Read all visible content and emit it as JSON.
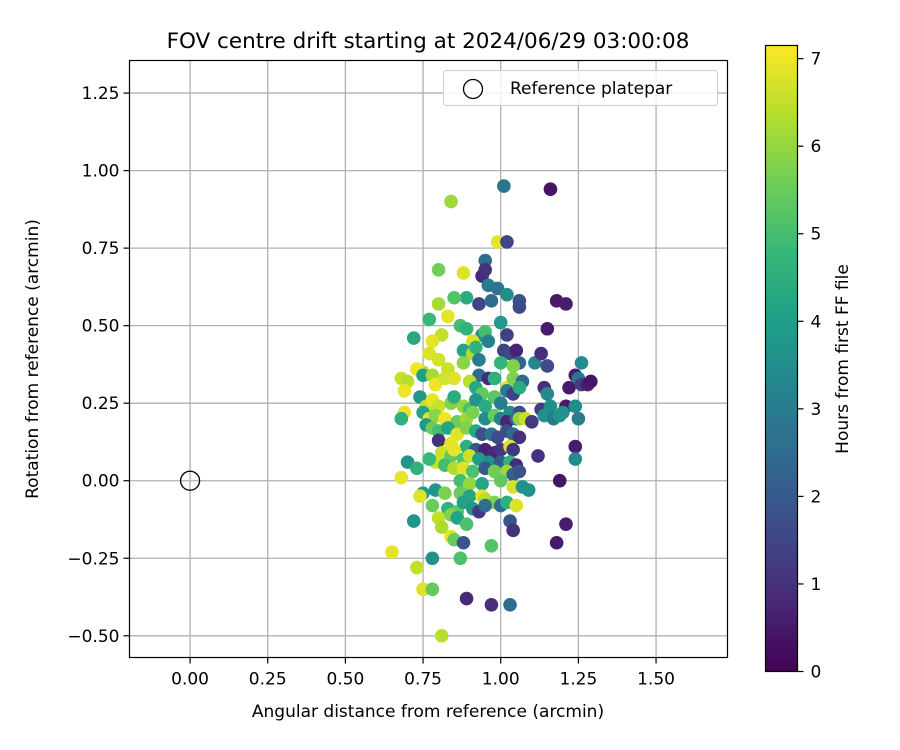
{
  "chart_data": {
    "type": "scatter",
    "title": "FOV centre drift starting at 2024/06/29 03:00:08",
    "xlabel": "Angular distance from reference (arcmin)",
    "ylabel": "Rotation from reference (arcmin)",
    "colorbar_label": "Hours from first FF file",
    "xlim": [
      -0.195,
      1.73
    ],
    "ylim": [
      -0.57,
      1.355
    ],
    "x_ticks": [
      0.0,
      0.25,
      0.5,
      0.75,
      1.0,
      1.25,
      1.5
    ],
    "x_tick_labels": [
      "0.00",
      "0.25",
      "0.50",
      "0.75",
      "1.00",
      "1.25",
      "1.50"
    ],
    "y_ticks": [
      -0.5,
      -0.25,
      0.0,
      0.25,
      0.5,
      0.75,
      1.0,
      1.25
    ],
    "y_tick_labels": [
      "−0.50",
      "−0.25",
      "0.00",
      "0.25",
      "0.50",
      "0.75",
      "1.00",
      "1.25"
    ],
    "colorbar_range": [
      0,
      7.15
    ],
    "colorbar_ticks": [
      0,
      1,
      2,
      3,
      4,
      5,
      6,
      7
    ],
    "colormap": "viridis",
    "grid": true,
    "legend": {
      "position": "upper right",
      "entries": [
        {
          "label": "Reference platepar",
          "marker": "open-circle",
          "x": 0.0,
          "y": 0.0
        }
      ]
    },
    "points": [
      [
        0.84,
        0.9,
        6.1
      ],
      [
        1.01,
        0.95,
        2.8
      ],
      [
        1.16,
        0.94,
        0.4
      ],
      [
        0.99,
        0.77,
        6.9
      ],
      [
        1.02,
        0.77,
        1.5
      ],
      [
        0.95,
        0.71,
        2.5
      ],
      [
        0.8,
        0.68,
        5.6
      ],
      [
        0.88,
        0.67,
        6.8
      ],
      [
        0.94,
        0.66,
        0.8
      ],
      [
        0.95,
        0.68,
        1.0
      ],
      [
        0.96,
        0.63,
        3.0
      ],
      [
        0.99,
        0.62,
        2.8
      ],
      [
        1.02,
        0.6,
        3.5
      ],
      [
        0.89,
        0.59,
        4.4
      ],
      [
        0.85,
        0.59,
        5.2
      ],
      [
        0.93,
        0.57,
        1.5
      ],
      [
        0.97,
        0.58,
        2.5
      ],
      [
        1.06,
        0.58,
        1.8
      ],
      [
        1.06,
        0.56,
        1.6
      ],
      [
        1.18,
        0.58,
        0.5
      ],
      [
        1.21,
        0.57,
        0.6
      ],
      [
        0.8,
        0.57,
        6.2
      ],
      [
        0.77,
        0.52,
        4.8
      ],
      [
        0.83,
        0.53,
        6.9
      ],
      [
        0.87,
        0.5,
        5.0
      ],
      [
        0.89,
        0.49,
        4.6
      ],
      [
        0.94,
        0.47,
        3.6
      ],
      [
        0.95,
        0.48,
        5.0
      ],
      [
        0.96,
        0.45,
        3.2
      ],
      [
        1.02,
        0.47,
        1.4
      ],
      [
        1.15,
        0.49,
        0.5
      ],
      [
        1.0,
        0.51,
        3.8
      ],
      [
        0.81,
        0.47,
        6.5
      ],
      [
        0.78,
        0.45,
        6.9
      ],
      [
        0.91,
        0.45,
        6.8
      ],
      [
        0.72,
        0.46,
        4.3
      ],
      [
        0.88,
        0.42,
        4.2
      ],
      [
        0.91,
        0.41,
        6.3
      ],
      [
        0.92,
        0.43,
        4.6
      ],
      [
        0.93,
        0.39,
        3.0
      ],
      [
        1.01,
        0.42,
        1.4
      ],
      [
        1.03,
        0.41,
        1.6
      ],
      [
        1.05,
        0.42,
        0.7
      ],
      [
        1.06,
        0.38,
        2.3
      ],
      [
        1.04,
        0.37,
        5.8
      ],
      [
        1.0,
        0.38,
        4.7
      ],
      [
        1.11,
        0.38,
        3.3
      ],
      [
        1.13,
        0.41,
        0.9
      ],
      [
        1.15,
        0.37,
        1.6
      ],
      [
        1.26,
        0.38,
        3.4
      ],
      [
        0.77,
        0.41,
        6.8
      ],
      [
        0.75,
        0.35,
        6.5
      ],
      [
        0.73,
        0.36,
        7.0
      ],
      [
        0.8,
        0.39,
        6.7
      ],
      [
        0.83,
        0.36,
        6.6
      ],
      [
        0.88,
        0.38,
        5.9
      ],
      [
        0.93,
        0.34,
        2.5
      ],
      [
        0.96,
        0.33,
        0.8
      ],
      [
        0.98,
        0.33,
        4.5
      ],
      [
        1.02,
        0.3,
        6.9
      ],
      [
        1.04,
        0.33,
        5.7
      ],
      [
        1.07,
        0.32,
        2.5
      ],
      [
        1.14,
        0.3,
        0.9
      ],
      [
        1.22,
        0.3,
        0.5
      ],
      [
        1.24,
        0.34,
        0.5
      ],
      [
        1.25,
        0.33,
        2.8
      ],
      [
        1.26,
        0.31,
        1.3
      ],
      [
        1.28,
        0.31,
        0.6
      ],
      [
        1.29,
        0.32,
        0.4
      ],
      [
        0.68,
        0.33,
        6.6
      ],
      [
        0.7,
        0.32,
        6.4
      ],
      [
        0.69,
        0.29,
        7.0
      ],
      [
        0.75,
        0.34,
        4.0
      ],
      [
        0.78,
        0.34,
        6.2
      ],
      [
        0.79,
        0.31,
        7.0
      ],
      [
        0.82,
        0.33,
        6.7
      ],
      [
        0.85,
        0.33,
        6.8
      ],
      [
        0.9,
        0.32,
        6.4
      ],
      [
        0.92,
        0.3,
        4.3
      ],
      [
        0.94,
        0.28,
        5.4
      ],
      [
        0.98,
        0.27,
        5.3
      ],
      [
        1.02,
        0.29,
        3.0
      ],
      [
        1.04,
        0.28,
        1.4
      ],
      [
        1.06,
        0.3,
        4.4
      ],
      [
        1.15,
        0.28,
        3.4
      ],
      [
        1.21,
        0.24,
        0.5
      ],
      [
        0.74,
        0.27,
        3.8
      ],
      [
        0.76,
        0.24,
        6.5
      ],
      [
        0.78,
        0.26,
        6.9
      ],
      [
        0.8,
        0.24,
        6.6
      ],
      [
        0.84,
        0.25,
        5.8
      ],
      [
        0.85,
        0.27,
        4.4
      ],
      [
        0.88,
        0.24,
        6.0
      ],
      [
        0.9,
        0.23,
        5.0
      ],
      [
        0.92,
        0.26,
        3.7
      ],
      [
        0.95,
        0.24,
        4.4
      ],
      [
        1.0,
        0.25,
        3.0
      ],
      [
        1.03,
        0.22,
        3.5
      ],
      [
        1.06,
        0.22,
        1.6
      ],
      [
        1.13,
        0.23,
        1.3
      ],
      [
        1.16,
        0.24,
        3.5
      ],
      [
        1.2,
        0.22,
        3.6
      ],
      [
        1.24,
        0.24,
        3.5
      ],
      [
        0.69,
        0.22,
        6.9
      ],
      [
        0.68,
        0.2,
        4.5
      ],
      [
        0.75,
        0.22,
        4.1
      ],
      [
        0.77,
        0.2,
        6.8
      ],
      [
        0.79,
        0.21,
        5.9
      ],
      [
        0.82,
        0.2,
        7.0
      ],
      [
        0.86,
        0.19,
        5.5
      ],
      [
        0.89,
        0.2,
        6.1
      ],
      [
        0.91,
        0.22,
        5.7
      ],
      [
        0.95,
        0.2,
        3.5
      ],
      [
        0.98,
        0.21,
        5.5
      ],
      [
        1.0,
        0.2,
        3.2
      ],
      [
        1.02,
        0.19,
        0.7
      ],
      [
        1.05,
        0.2,
        2.4
      ],
      [
        1.06,
        0.2,
        6.0
      ],
      [
        1.08,
        0.2,
        6.6
      ],
      [
        1.1,
        0.19,
        1.2
      ],
      [
        1.14,
        0.21,
        3.6
      ],
      [
        1.17,
        0.2,
        3.0
      ],
      [
        1.19,
        0.21,
        3.7
      ],
      [
        1.25,
        0.2,
        3.0
      ],
      [
        0.76,
        0.18,
        3.8
      ],
      [
        0.78,
        0.17,
        5.5
      ],
      [
        0.8,
        0.16,
        5.0
      ],
      [
        0.83,
        0.17,
        4.2
      ],
      [
        0.86,
        0.15,
        6.8
      ],
      [
        0.89,
        0.17,
        5.8
      ],
      [
        0.92,
        0.16,
        4.3
      ],
      [
        0.94,
        0.15,
        1.8
      ],
      [
        0.97,
        0.15,
        2.8
      ],
      [
        0.99,
        0.14,
        1.6
      ],
      [
        1.02,
        0.16,
        1.7
      ],
      [
        1.04,
        0.15,
        2.4
      ],
      [
        1.06,
        0.14,
        1.0
      ],
      [
        0.8,
        0.13,
        1.0
      ],
      [
        0.84,
        0.12,
        6.9
      ],
      [
        0.89,
        0.11,
        4.5
      ],
      [
        0.92,
        0.1,
        1.9
      ],
      [
        0.95,
        0.1,
        0.7
      ],
      [
        0.98,
        0.09,
        0.8
      ],
      [
        1.0,
        0.1,
        1.2
      ],
      [
        1.03,
        0.11,
        6.8
      ],
      [
        1.04,
        0.1,
        1.1
      ],
      [
        1.24,
        0.11,
        0.6
      ],
      [
        0.81,
        0.09,
        6.6
      ],
      [
        0.84,
        0.08,
        5.4
      ],
      [
        0.85,
        0.1,
        6.9
      ],
      [
        0.88,
        0.07,
        5.2
      ],
      [
        0.9,
        0.08,
        6.6
      ],
      [
        0.93,
        0.07,
        4.0
      ],
      [
        0.96,
        0.06,
        3.6
      ],
      [
        1.0,
        0.06,
        2.0
      ],
      [
        1.03,
        0.06,
        4.6
      ],
      [
        1.05,
        0.05,
        0.9
      ],
      [
        1.12,
        0.08,
        1.0
      ],
      [
        1.24,
        0.07,
        3.4
      ],
      [
        0.7,
        0.06,
        3.7
      ],
      [
        0.79,
        0.06,
        6.6
      ],
      [
        0.77,
        0.07,
        4.8
      ],
      [
        0.82,
        0.05,
        5.0
      ],
      [
        0.85,
        0.04,
        6.3
      ],
      [
        0.88,
        0.04,
        6.8
      ],
      [
        0.91,
        0.03,
        5.1
      ],
      [
        0.95,
        0.04,
        2.0
      ],
      [
        0.98,
        0.03,
        5.6
      ],
      [
        1.02,
        0.03,
        6.1
      ],
      [
        1.04,
        0.02,
        2.2
      ],
      [
        1.06,
        0.03,
        1.8
      ],
      [
        0.68,
        0.01,
        6.9
      ],
      [
        0.73,
        0.04,
        4.6
      ],
      [
        0.87,
        0.0,
        5.0
      ],
      [
        0.9,
        -0.01,
        6.0
      ],
      [
        0.94,
        -0.01,
        4.2
      ],
      [
        1.0,
        0.0,
        5.4
      ],
      [
        1.04,
        -0.02,
        6.7
      ],
      [
        1.07,
        -0.02,
        3.6
      ],
      [
        1.09,
        -0.03,
        3.7
      ],
      [
        1.19,
        0.0,
        0.4
      ],
      [
        0.75,
        -0.04,
        3.9
      ],
      [
        0.74,
        -0.05,
        6.8
      ],
      [
        0.79,
        -0.03,
        3.7
      ],
      [
        0.82,
        -0.04,
        5.7
      ],
      [
        0.87,
        -0.04,
        5.5
      ],
      [
        0.9,
        -0.05,
        4.2
      ],
      [
        0.94,
        -0.05,
        6.9
      ],
      [
        0.95,
        -0.06,
        6.4
      ],
      [
        0.98,
        -0.07,
        5.8
      ],
      [
        1.0,
        -0.08,
        2.5
      ],
      [
        1.02,
        -0.07,
        4.5
      ],
      [
        1.05,
        -0.08,
        6.8
      ],
      [
        0.78,
        -0.08,
        5.5
      ],
      [
        0.83,
        -0.09,
        4.6
      ],
      [
        0.86,
        -0.1,
        5.3
      ],
      [
        0.88,
        -0.07,
        4.1
      ],
      [
        0.91,
        -0.09,
        3.8
      ],
      [
        0.93,
        -0.1,
        1.2
      ],
      [
        0.95,
        -0.08,
        2.6
      ],
      [
        0.8,
        -0.12,
        6.5
      ],
      [
        0.84,
        -0.11,
        5.8
      ],
      [
        0.86,
        -0.12,
        4.1
      ],
      [
        0.89,
        -0.14,
        5.1
      ],
      [
        0.72,
        -0.13,
        3.7
      ],
      [
        0.81,
        -0.15,
        6.3
      ],
      [
        1.03,
        -0.13,
        1.9
      ],
      [
        1.04,
        -0.16,
        1.0
      ],
      [
        1.21,
        -0.14,
        0.6
      ],
      [
        0.84,
        -0.18,
        6.9
      ],
      [
        0.85,
        -0.19,
        5.5
      ],
      [
        0.88,
        -0.2,
        1.9
      ],
      [
        0.97,
        -0.21,
        5.2
      ],
      [
        1.18,
        -0.2,
        0.5
      ],
      [
        0.65,
        -0.23,
        6.9
      ],
      [
        0.78,
        -0.25,
        3.6
      ],
      [
        0.87,
        -0.25,
        5.1
      ],
      [
        0.73,
        -0.28,
        6.5
      ],
      [
        0.75,
        -0.35,
        6.8
      ],
      [
        0.78,
        -0.35,
        5.4
      ],
      [
        0.89,
        -0.38,
        0.8
      ],
      [
        0.97,
        -0.4,
        0.9
      ],
      [
        1.03,
        -0.4,
        2.5
      ],
      [
        0.81,
        -0.5,
        6.4
      ]
    ]
  }
}
